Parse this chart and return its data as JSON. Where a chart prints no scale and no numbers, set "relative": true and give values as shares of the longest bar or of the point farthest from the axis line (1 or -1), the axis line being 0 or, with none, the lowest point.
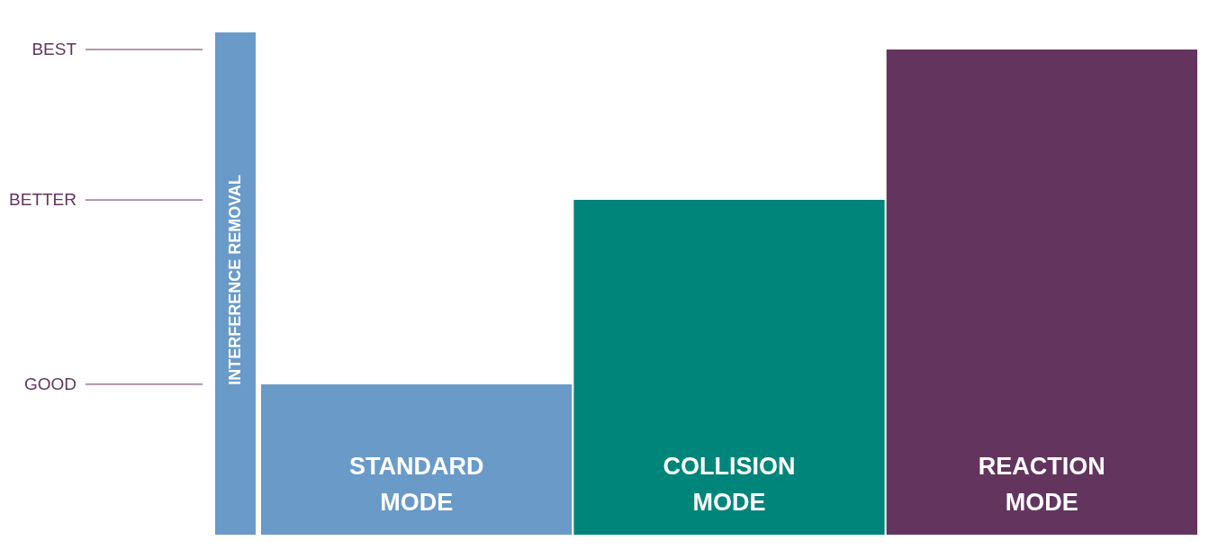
{
  "chart_data": {
    "type": "bar",
    "relative": true,
    "ylabel": "INTERFERENCE REMOVAL",
    "categories": [
      "STANDARD MODE",
      "COLLISION MODE",
      "REACTION MODE"
    ],
    "values": [
      0.31,
      0.69,
      1.0
    ],
    "colors": [
      "#6a9ac8",
      "#00857a",
      "#63355e"
    ],
    "annotations": [
      "GOOD",
      "BETTER",
      "BEST"
    ]
  }
}
